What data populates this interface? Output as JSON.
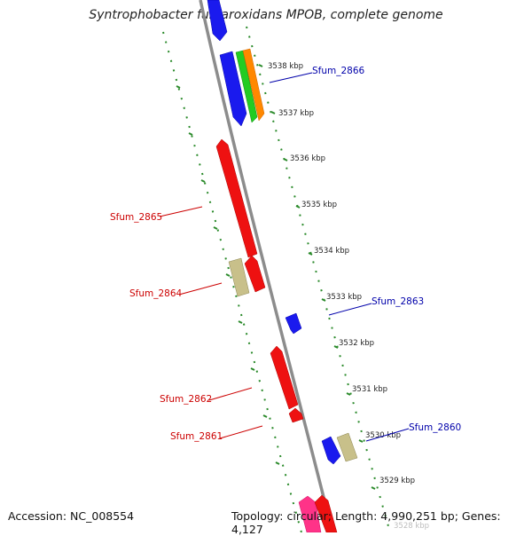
{
  "title": "Syntrophobacter fumaroxidans MPOB, complete genome",
  "footer": {
    "accession_label": "Accession:",
    "accession": "NC_008554",
    "topology_label": "Topology:",
    "topology": "circular",
    "length_label": "Length:",
    "length": "4,990,251 bp",
    "genes_label": "Genes:",
    "genes": "4,127"
  },
  "colors": {
    "backbone": "#8c8c8c",
    "tick": "#2a8a2a",
    "reverse_strand_label": "#cc0000",
    "forward_strand_label": "#0000aa"
  },
  "ticks": [
    {
      "label": "3538 kbp"
    },
    {
      "label": "3537 kbp"
    },
    {
      "label": "3536 kbp"
    },
    {
      "label": "3535 kbp"
    },
    {
      "label": "3534 kbp"
    },
    {
      "label": "3533 kbp"
    },
    {
      "label": "3532 kbp"
    },
    {
      "label": "3531 kbp"
    },
    {
      "label": "3530 kbp"
    },
    {
      "label": "3529 kbp"
    },
    {
      "label": "3528 kbp"
    }
  ],
  "gene_labels": [
    {
      "text": "Sfum_2866",
      "strand": "forward"
    },
    {
      "text": "Sfum_2865",
      "strand": "reverse"
    },
    {
      "text": "Sfum_2864",
      "strand": "reverse"
    },
    {
      "text": "Sfum_2863",
      "strand": "forward"
    },
    {
      "text": "Sfum_2862",
      "strand": "reverse"
    },
    {
      "text": "Sfum_2861",
      "strand": "reverse"
    },
    {
      "text": "Sfum_2860",
      "strand": "forward"
    }
  ]
}
